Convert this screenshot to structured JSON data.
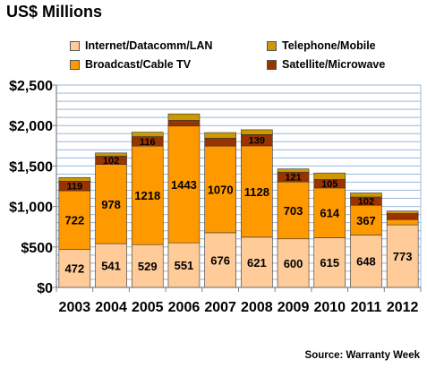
{
  "title": "US$ Millions",
  "source": "Source: Warranty Week",
  "colors": {
    "internet": "#ffcc99",
    "broadcast": "#ff9900",
    "satellite": "#993300",
    "telephone": "#cc9900",
    "gridline": "#9ab8d8",
    "axis": "#808080",
    "outline": "#333333"
  },
  "legend": [
    {
      "label": "Internet/Datacomm/LAN",
      "color": "#ffcc99"
    },
    {
      "label": "Telephone/Mobile",
      "color": "#cc9900"
    },
    {
      "label": "Broadcast/Cable TV",
      "color": "#ff9900"
    },
    {
      "label": "Satellite/Microwave",
      "color": "#993300"
    }
  ],
  "chart_data": {
    "type": "bar",
    "stacked": true,
    "title": "US$ Millions",
    "xlabel": "",
    "ylabel": "",
    "ylim": [
      0,
      2500
    ],
    "grid": true,
    "legend_position": "top",
    "categories": [
      "2003",
      "2004",
      "2005",
      "2006",
      "2007",
      "2008",
      "2009",
      "2010",
      "2011",
      "2012"
    ],
    "y_ticks": [
      0,
      500,
      1000,
      1500,
      2000,
      2500
    ],
    "y_tick_labels": [
      "$0",
      "$500",
      "$1,000",
      "$1,500",
      "$2,000",
      "$2,500"
    ],
    "series": [
      {
        "name": "Internet/Datacomm/LAN",
        "color": "#ffcc99",
        "values": [
          472,
          541,
          529,
          551,
          676,
          621,
          600,
          615,
          648,
          773
        ],
        "labels": [
          "472",
          "541",
          "529",
          "551",
          "676",
          "621",
          "600",
          "615",
          "648",
          "773"
        ]
      },
      {
        "name": "Broadcast/Cable TV",
        "color": "#ff9900",
        "values": [
          722,
          978,
          1218,
          1443,
          1070,
          1128,
          703,
          614,
          367,
          65
        ],
        "labels": [
          "722",
          "978",
          "1218",
          "1443",
          "1070",
          "1128",
          "703",
          "614",
          "367",
          ""
        ]
      },
      {
        "name": "Satellite/Microwave",
        "color": "#993300",
        "values": [
          119,
          102,
          116,
          70,
          97,
          139,
          121,
          105,
          102,
          75
        ],
        "labels": [
          "119",
          "102",
          "116",
          "",
          "",
          "139",
          "121",
          "105",
          "102",
          ""
        ]
      },
      {
        "name": "Telephone/Mobile",
        "color": "#cc9900",
        "values": [
          45,
          40,
          55,
          80,
          70,
          60,
          40,
          80,
          50,
          30
        ],
        "labels": [
          "",
          "",
          "",
          "",
          "",
          "",
          "",
          "",
          "",
          ""
        ]
      }
    ]
  }
}
